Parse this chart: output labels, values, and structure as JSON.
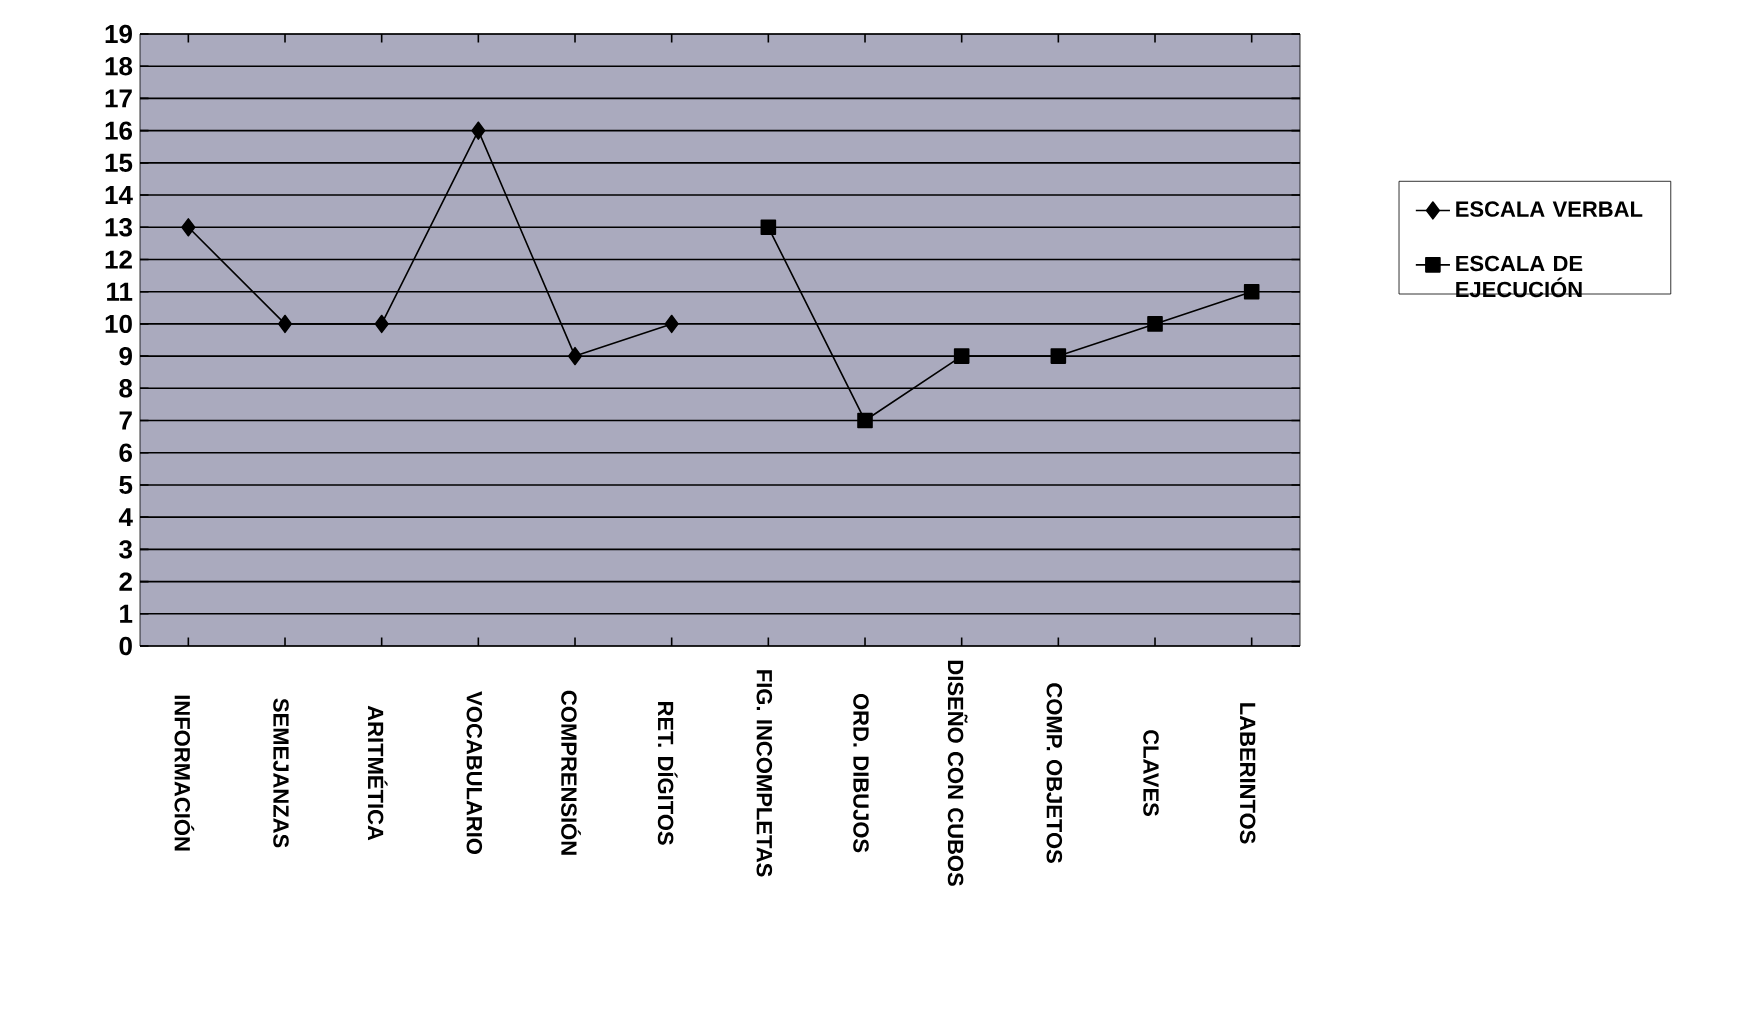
{
  "chart_data": {
    "type": "line",
    "categories": [
      "INFORMACIÓN",
      "SEMEJANZAS",
      "ARITMÉTICA",
      "VOCABULARIO",
      "COMPRENSIÓN",
      "RET. DÍGITOS",
      "FIG. INCOMPLETAS",
      "ORD. DIBUJOS",
      "DISEÑO CON CUBOS",
      "COMP. OBJETOS",
      "CLAVES",
      "LABERINTOS"
    ],
    "series": [
      {
        "name": "ESCALA VERBAL",
        "color": "#000000",
        "marker": "diamond",
        "values": [
          13,
          10,
          10,
          16,
          9,
          10,
          null,
          null,
          null,
          null,
          null,
          null
        ]
      },
      {
        "name": "ESCALA DE EJECUCIÓN",
        "color": "#000000",
        "marker": "square",
        "values": [
          null,
          null,
          null,
          null,
          null,
          null,
          13,
          7,
          9,
          9,
          10,
          11
        ]
      }
    ],
    "ylim": [
      0,
      19
    ],
    "yticks": [
      0,
      1,
      2,
      3,
      4,
      5,
      6,
      7,
      8,
      9,
      10,
      11,
      12,
      13,
      14,
      15,
      16,
      17,
      18,
      19
    ],
    "grid": "y",
    "legend": "right"
  }
}
